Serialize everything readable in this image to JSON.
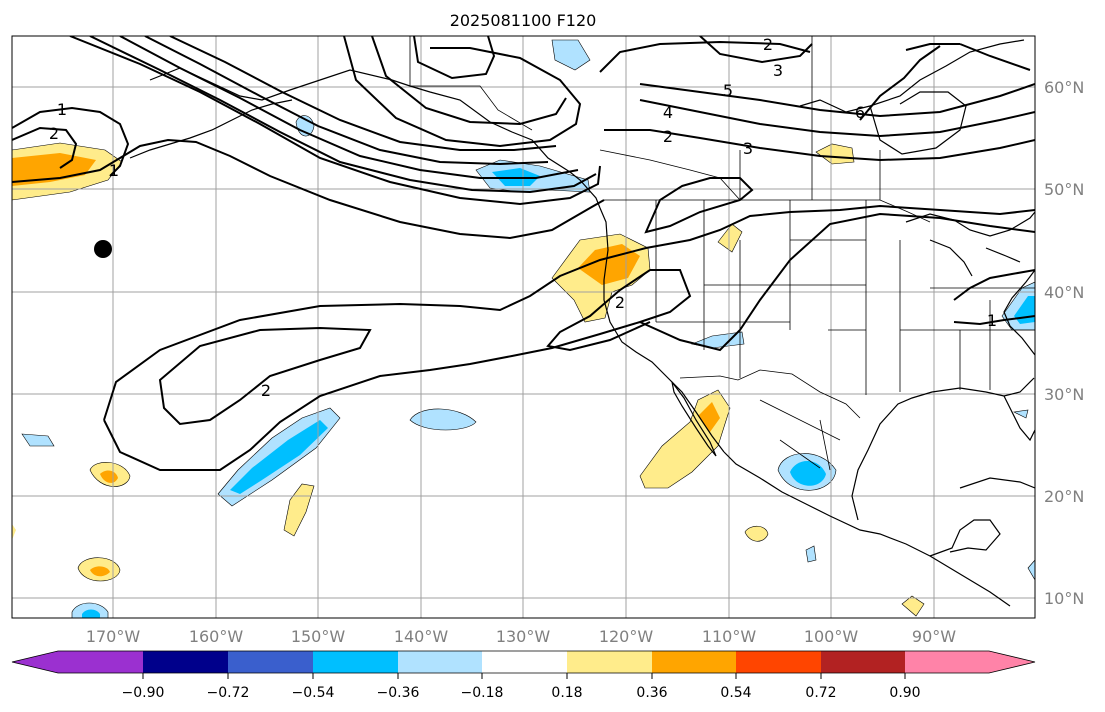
{
  "map": {
    "title": "2025081100 F120",
    "lon_labels": [
      "170°W",
      "160°W",
      "150°W",
      "140°W",
      "130°W",
      "120°W",
      "110°W",
      "100°W",
      "90°W"
    ],
    "lat_labels": [
      "60°N",
      "50°N",
      "40°N",
      "30°N",
      "20°N",
      "10°N"
    ],
    "contour_labels": [
      "1",
      "2",
      "1",
      "2",
      "2",
      "3",
      "4",
      "5",
      "6",
      "2",
      "3",
      "2",
      "1"
    ],
    "marker": "black-dot"
  },
  "colorbar": {
    "tick_labels": [
      "−0.90",
      "−0.72",
      "−0.54",
      "−0.36",
      "−0.18",
      "0.18",
      "0.36",
      "0.54",
      "0.72",
      "0.90"
    ],
    "colors": [
      "#9b30d0",
      "#00008b",
      "#3a5fcd",
      "#00bfff",
      "#b0e2ff",
      "#ffffff",
      "#ffec8b",
      "#ffa500",
      "#ff4500",
      "#b22222",
      "#ff83a8"
    ]
  }
}
